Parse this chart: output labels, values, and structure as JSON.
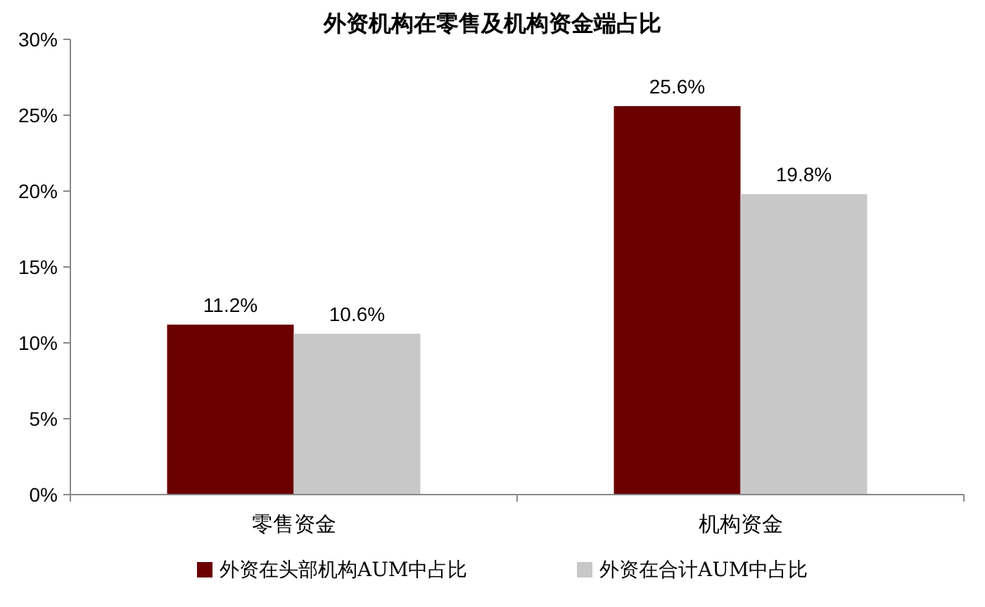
{
  "chart_data": {
    "type": "bar",
    "title": "外资机构在零售及机构资金端占比",
    "categories": [
      "零售资金",
      "机构资金"
    ],
    "series": [
      {
        "name": "外资在头部机构AUM中占比",
        "color": "#6b0000",
        "values": [
          11.2,
          25.6
        ]
      },
      {
        "name": "外资在合计AUM中占比",
        "color": "#c8c8c8",
        "values": [
          10.6,
          19.8
        ]
      }
    ],
    "ylim": [
      0,
      30
    ],
    "yticks": [
      {
        "value": 0,
        "label": "0%"
      },
      {
        "value": 5,
        "label": "5%"
      },
      {
        "value": 10,
        "label": "10%"
      },
      {
        "value": 15,
        "label": "15%"
      },
      {
        "value": 20,
        "label": "20%"
      },
      {
        "value": 25,
        "label": "25%"
      },
      {
        "value": 30,
        "label": "30%"
      }
    ],
    "value_labels": [
      [
        "11.2%",
        "25.6%"
      ],
      [
        "10.6%",
        "19.8%"
      ]
    ],
    "legend": "bottom",
    "grid": false
  }
}
